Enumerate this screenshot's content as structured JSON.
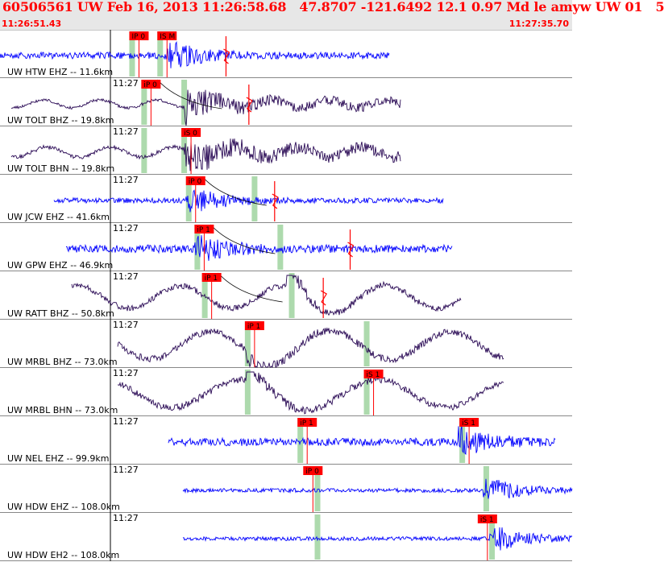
{
  "header": {
    "title": "60506561 UW Feb 16, 2013 11:26:58.68   47.8707 -121.6492 12.1 0.97 Md le amyw UW 01   5",
    "start_time": "11:26:51.43",
    "end_time": "11:27:35.70"
  },
  "colors": {
    "header_bg": "#e7e7e7",
    "header_text": "#ff0000",
    "trace_blue": "#0000ff",
    "trace_purple": "#2a0a55",
    "pick_red": "#ff0000",
    "window_green": "#9fd39f",
    "separator": "#888888"
  },
  "minute_label": "11:27",
  "traces": [
    {
      "label": "UW HTW EHZ -- 11.6km",
      "color": "blue",
      "style": "burst",
      "wave": {
        "start": 0.0,
        "end": 0.68,
        "onset": 0.29,
        "amp": 5,
        "peak": 22,
        "period": 0.06
      },
      "picks": [
        {
          "text": "IP 0",
          "pos": 0.226
        },
        {
          "text": "IS M",
          "pos": 0.275
        }
      ],
      "windows": [
        0.226,
        0.275
      ],
      "red_spike": 0.395,
      "curve": false
    },
    {
      "label": "UW TOLT BHZ -- 19.8km",
      "color": "purple",
      "style": "mixed",
      "wave": {
        "start": 0.02,
        "end": 0.7,
        "onset": 0.32,
        "amp": 6,
        "peak": 22,
        "period": 0.1
      },
      "picks": [
        {
          "text": "iP 0",
          "pos": 0.247
        }
      ],
      "windows": [
        0.247,
        0.317
      ],
      "red_spike": 0.435,
      "curve": true
    },
    {
      "label": "UW TOLT BHN -- 19.8km",
      "color": "purple",
      "style": "mixed",
      "wave": {
        "start": 0.02,
        "end": 0.7,
        "onset": 0.32,
        "amp": 8,
        "peak": 24,
        "period": 0.11
      },
      "picks": [
        {
          "text": "iS 0",
          "pos": 0.317
        }
      ],
      "windows": [
        0.247,
        0.317
      ],
      "red_spike": null,
      "curve": false
    },
    {
      "label": "UW JCW EHZ -- 41.6km",
      "color": "blue",
      "style": "burst",
      "wave": {
        "start": 0.095,
        "end": 0.775,
        "onset": 0.325,
        "amp": 4,
        "peak": 22,
        "period": 0.05
      },
      "picks": [
        {
          "text": "iP 0",
          "pos": 0.325
        }
      ],
      "windows": [
        0.325,
        0.44
      ],
      "red_spike": 0.48,
      "curve": true
    },
    {
      "label": "UW GPW EHZ -- 46.9km",
      "color": "blue",
      "style": "burst",
      "wave": {
        "start": 0.115,
        "end": 0.79,
        "onset": 0.34,
        "amp": 6,
        "peak": 20,
        "period": 0.05
      },
      "picks": [
        {
          "text": "iP 1",
          "pos": 0.34
        }
      ],
      "windows": [
        0.34,
        0.485
      ],
      "red_spike": 0.612,
      "curve": true
    },
    {
      "label": "UW RATT BHZ -- 50.8km",
      "color": "purple",
      "style": "sine",
      "wave": {
        "start": 0.125,
        "end": 0.805,
        "onset": 0.5,
        "amp": 14,
        "peak": 26,
        "period": 0.18
      },
      "picks": [
        {
          "text": "iP 1",
          "pos": 0.353
        }
      ],
      "windows": [
        0.353,
        0.505
      ],
      "red_spike": 0.565,
      "curve": true
    },
    {
      "label": "UW MRBL BHZ -- 73.0km",
      "color": "purple",
      "style": "sine",
      "wave": {
        "start": 0.205,
        "end": 0.88,
        "onset": 0.43,
        "amp": 17,
        "peak": 22,
        "period": 0.21
      },
      "picks": [
        {
          "text": "iP 1",
          "pos": 0.428
        }
      ],
      "windows": [
        0.428,
        0.636
      ],
      "red_spike": null,
      "curve": false
    },
    {
      "label": "UW MRBL BHN -- 73.0km",
      "color": "purple",
      "style": "sine",
      "wave": {
        "start": 0.205,
        "end": 0.88,
        "onset": 0.43,
        "amp": 17,
        "peak": 22,
        "period": 0.24
      },
      "picks": [
        {
          "text": "iS 1",
          "pos": 0.636
        }
      ],
      "windows": [
        0.428,
        0.636
      ],
      "red_spike": null,
      "curve": false
    },
    {
      "label": "UW NEL EHZ -- 99.9km",
      "color": "blue",
      "style": "noise",
      "wave": {
        "start": 0.295,
        "end": 0.97,
        "onset": 0.8,
        "amp": 6,
        "peak": 22,
        "period": 0.04
      },
      "picks": [
        {
          "text": "iP 1",
          "pos": 0.52
        },
        {
          "text": "iS 1",
          "pos": 0.803
        }
      ],
      "windows": [
        0.52,
        0.803
      ],
      "red_spike": null,
      "curve": false
    },
    {
      "label": "UW HDW EHZ -- 108.0km",
      "color": "blue",
      "style": "noise",
      "wave": {
        "start": 0.32,
        "end": 1.0,
        "onset": 0.845,
        "amp": 3,
        "peak": 22,
        "period": 0.04
      },
      "picks": [
        {
          "text": "iP 0",
          "pos": 0.53
        }
      ],
      "windows": [
        0.55,
        0.845
      ],
      "red_spike": null,
      "curve": false
    },
    {
      "label": "UW HDW EH2 -- 108.0km",
      "color": "blue",
      "style": "noise",
      "wave": {
        "start": 0.32,
        "end": 1.0,
        "onset": 0.855,
        "amp": 3,
        "peak": 22,
        "period": 0.04
      },
      "picks": [
        {
          "text": "iS 1",
          "pos": 0.835
        }
      ],
      "windows": [
        0.55,
        0.855
      ],
      "red_spike": null,
      "curve": false
    }
  ]
}
